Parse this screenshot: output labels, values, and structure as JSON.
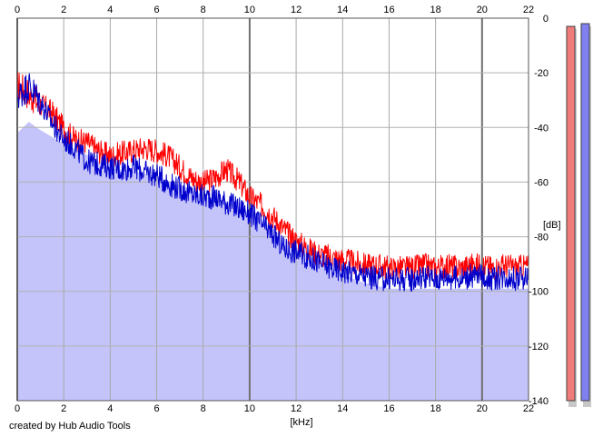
{
  "credit": "created by Hub Audio Tools",
  "chart_data": {
    "type": "line",
    "xlabel": "[kHz]",
    "ylabel": "[dB]",
    "xlim": [
      0,
      22
    ],
    "ylim": [
      -140,
      0
    ],
    "x_ticks": [
      "0",
      "2",
      "4",
      "6",
      "8",
      "10",
      "12",
      "14",
      "16",
      "18",
      "20",
      "22"
    ],
    "y_ticks": [
      "0",
      "-20",
      "-40",
      "-60",
      "-80",
      "-100",
      "-120",
      "-140"
    ],
    "grid": true,
    "background_fill": {
      "color": "#c4c4fb",
      "description": "smoothed spectrum envelope"
    },
    "fill_envelope": {
      "x": [
        0,
        0.5,
        1,
        2,
        3,
        4,
        5,
        6,
        7,
        8,
        9,
        10,
        11,
        12,
        13,
        14,
        15,
        16,
        17,
        18,
        19,
        20,
        21,
        22
      ],
      "y": [
        -42,
        -38,
        -41,
        -46,
        -50,
        -55,
        -56,
        -58,
        -61,
        -65,
        -67,
        -71,
        -77,
        -84,
        -89,
        -94,
        -97,
        -99,
        -99,
        -99,
        -99,
        -99,
        -99,
        -99
      ]
    },
    "series": [
      {
        "name": "",
        "color": "#ff0000",
        "x": [
          0,
          0.5,
          1,
          1.5,
          2,
          2.5,
          3,
          3.5,
          4,
          4.5,
          5,
          5.5,
          6,
          6.5,
          7,
          7.5,
          8,
          8.5,
          9,
          9.5,
          10,
          10.5,
          11,
          11.5,
          12,
          12.5,
          13,
          13.5,
          14,
          14.5,
          15,
          15.5,
          16,
          16.5,
          17,
          17.5,
          18,
          18.5,
          19,
          19.5,
          20,
          20.5,
          21,
          21.5,
          22
        ],
        "y": [
          -24,
          -27,
          -31,
          -34,
          -40,
          -44,
          -45,
          -48,
          -50,
          -49,
          -48,
          -47,
          -48,
          -50,
          -54,
          -58,
          -60,
          -58,
          -55,
          -59,
          -65,
          -68,
          -72,
          -77,
          -81,
          -84,
          -86,
          -87,
          -88,
          -89,
          -90,
          -90,
          -91,
          -91,
          -91,
          -90,
          -91,
          -90,
          -91,
          -90,
          -90,
          -91,
          -90,
          -91,
          -90
        ]
      },
      {
        "name": "",
        "color": "#0000cc",
        "x": [
          0,
          0.5,
          1,
          1.5,
          2,
          2.5,
          3,
          3.5,
          4,
          4.5,
          5,
          5.5,
          6,
          6.5,
          7,
          7.5,
          8,
          8.5,
          9,
          9.5,
          10,
          10.5,
          11,
          11.5,
          12,
          12.5,
          13,
          13.5,
          14,
          14.5,
          15,
          15.5,
          16,
          16.5,
          17,
          17.5,
          18,
          18.5,
          19,
          19.5,
          20,
          20.5,
          21,
          21.5,
          22
        ],
        "y": [
          -28,
          -24,
          -30,
          -38,
          -44,
          -47,
          -52,
          -53,
          -54,
          -55,
          -54,
          -56,
          -57,
          -60,
          -62,
          -64,
          -65,
          -65,
          -67,
          -69,
          -71,
          -75,
          -79,
          -84,
          -85,
          -87,
          -89,
          -91,
          -92,
          -93,
          -94,
          -95,
          -95,
          -95,
          -95,
          -94,
          -95,
          -94,
          -95,
          -94,
          -94,
          -95,
          -94,
          -95,
          -94
        ]
      }
    ],
    "level_meters": [
      {
        "color": "#f07b7b",
        "level_db": -3
      },
      {
        "color": "#8080f0",
        "level_db": -2
      }
    ]
  }
}
